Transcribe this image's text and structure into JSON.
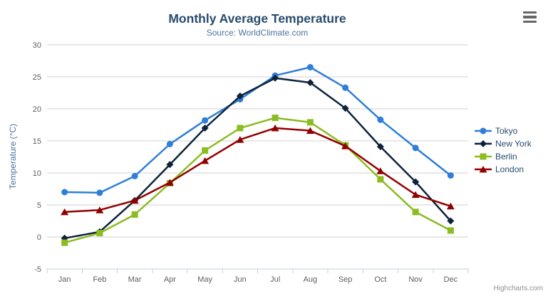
{
  "chart": {
    "title": "Monthly Average Temperature",
    "subtitle": "Source: WorldClimate.com",
    "credit": "Highcharts.com"
  },
  "icons": {
    "context_menu_icon": "hamburger-bars"
  },
  "colors": {
    "title_text": "#274b6d",
    "subtitle_text": "#4d759e",
    "axis_label_text": "#606060",
    "axis_title_text": "#4d759e",
    "legend_text": "#274b6d",
    "gridline": "#d0d0d0",
    "axis_line": "#c0d0e0",
    "background": "#ffffff",
    "credit_text": "#909090"
  },
  "chart_data": {
    "type": "line",
    "title": "Monthly Average Temperature",
    "subtitle": "Source: WorldClimate.com",
    "categories": [
      "Jan",
      "Feb",
      "Mar",
      "Apr",
      "May",
      "Jun",
      "Jul",
      "Aug",
      "Sep",
      "Oct",
      "Nov",
      "Dec"
    ],
    "series": [
      {
        "name": "Tokyo",
        "color": "#2f7ed8",
        "marker": "circle",
        "values": [
          7.0,
          6.9,
          9.5,
          14.5,
          18.2,
          21.5,
          25.2,
          26.5,
          23.3,
          18.3,
          13.9,
          9.6
        ]
      },
      {
        "name": "New York",
        "color": "#0d233a",
        "marker": "diamond",
        "values": [
          -0.2,
          0.8,
          5.7,
          11.3,
          17.0,
          22.0,
          24.8,
          24.1,
          20.1,
          14.1,
          8.6,
          2.5
        ]
      },
      {
        "name": "Berlin",
        "color": "#8bbc21",
        "marker": "square",
        "values": [
          -0.9,
          0.6,
          3.5,
          8.4,
          13.5,
          17.0,
          18.6,
          17.9,
          14.3,
          9.0,
          3.9,
          1.0
        ]
      },
      {
        "name": "London",
        "color": "#910000",
        "marker": "triangle",
        "values": [
          3.9,
          4.2,
          5.7,
          8.5,
          11.9,
          15.2,
          17.0,
          16.6,
          14.2,
          10.3,
          6.6,
          4.8
        ]
      }
    ],
    "xlabel": "",
    "ylabel": "Temperature (°C)",
    "ylim": [
      -5,
      30
    ],
    "ytick_step": 5,
    "grid": true,
    "legend_position": "right"
  }
}
